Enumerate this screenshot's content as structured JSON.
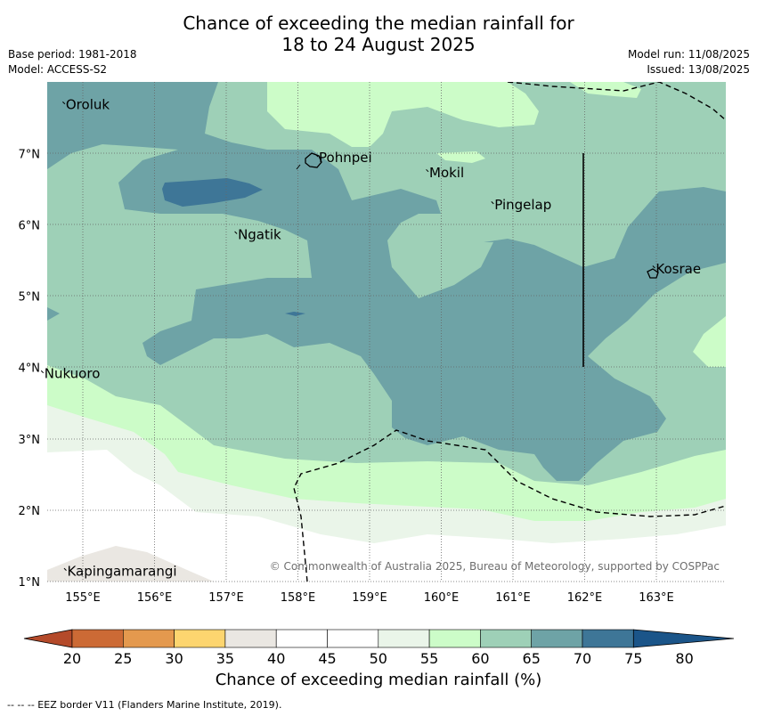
{
  "title": {
    "line1": "Chance of exceeding the median rainfall for",
    "line2": "18 to 24 August 2025"
  },
  "meta": {
    "base_period": "Base period: 1981-2018",
    "model": "Model: ACCESS-S2",
    "model_run": "Model run: 11/08/2025",
    "issued": "Issued: 13/08/2025"
  },
  "map": {
    "lon_ticks": [
      "155°E",
      "156°E",
      "157°E",
      "158°E",
      "159°E",
      "160°E",
      "161°E",
      "162°E",
      "163°E"
    ],
    "lat_ticks": [
      "1°N",
      "2°N",
      "3°N",
      "4°N",
      "5°N",
      "6°N",
      "7°N"
    ],
    "places": [
      {
        "name": "Oroluk",
        "lon": 154.75,
        "lat": 7.62
      },
      {
        "name": "Pohnpei",
        "lon": 158.28,
        "lat": 6.88
      },
      {
        "name": "Mokil",
        "lon": 159.82,
        "lat": 6.67
      },
      {
        "name": "Pingelap",
        "lon": 160.73,
        "lat": 6.22
      },
      {
        "name": "Ngatik",
        "lon": 157.15,
        "lat": 5.8
      },
      {
        "name": "Kosrae",
        "lon": 162.98,
        "lat": 5.32
      },
      {
        "name": "Nukuoro",
        "lon": 154.45,
        "lat": 3.85
      },
      {
        "name": "Kapingamarangi",
        "lon": 154.77,
        "lat": 1.08
      }
    ],
    "copyright": "© Commonwealth of Australia 2025, Bureau of Meteorology, supported by COSPPac"
  },
  "colorbar": {
    "ticks": [
      "20",
      "25",
      "30",
      "35",
      "40",
      "45",
      "50",
      "55",
      "60",
      "65",
      "70",
      "75",
      "80"
    ],
    "colors": [
      "#b44a2a",
      "#cc6a35",
      "#e4994e",
      "#fdd56f",
      "#eae7e2",
      "#ffffff",
      "#ffffff",
      "#eaf5e9",
      "#ccfcc8",
      "#9ed0b7",
      "#6ea3a6",
      "#3e7697",
      "#1b5589"
    ],
    "label": "Chance of exceeding median rainfall (%)"
  },
  "footer": "--  --  -- EEZ border V11 (Flanders Marine Institute, 2019)."
}
